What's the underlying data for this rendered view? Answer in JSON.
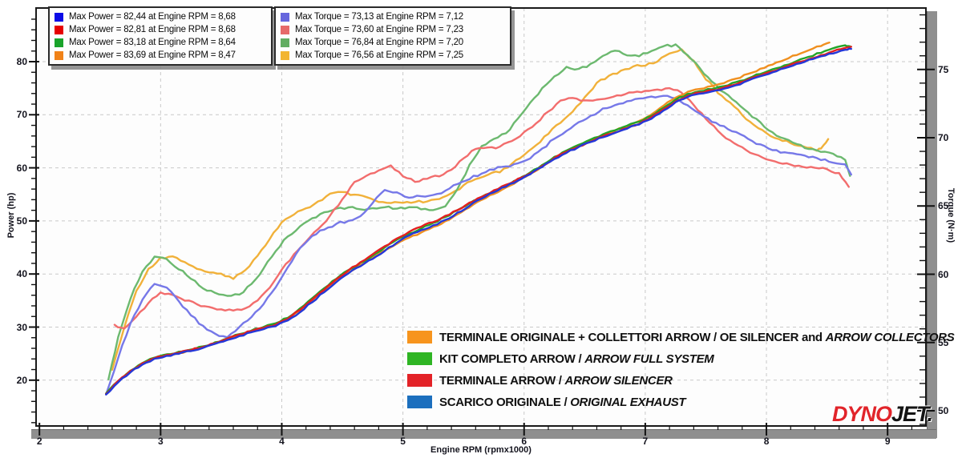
{
  "branding": {
    "dyno": "DYNO",
    "jet": "JET."
  },
  "legend_power": {
    "rows": [
      {
        "color": "#0a0ae6",
        "label": "Max Power = 82,44 at Engine RPM = 8,68"
      },
      {
        "color": "#e60000",
        "label": "Max Power = 82,81 at Engine RPM = 8,68"
      },
      {
        "color": "#19a32a",
        "label": "Max Power = 83,18 at Engine RPM = 8,64"
      },
      {
        "color": "#f08218",
        "label": "Max Power = 83,69 at Engine RPM = 8,47"
      }
    ]
  },
  "legend_torque": {
    "rows": [
      {
        "color": "#6666dd",
        "label": "Max Torque = 73,13 at Engine RPM = 7,12"
      },
      {
        "color": "#e66a6a",
        "label": "Max Torque = 73,60 at Engine RPM = 7,23"
      },
      {
        "color": "#62ad62",
        "label": "Max Torque = 76,84 at Engine RPM = 7,20"
      },
      {
        "color": "#f2b530",
        "label": "Max Torque = 76,56 at Engine RPM = 7,25"
      }
    ]
  },
  "main_legend": {
    "rows": [
      {
        "color": "#F7941D",
        "text": "TERMINALE ORIGINALE + COLLETTORI ARROW / OE SILENCER and ",
        "italic": "ARROW COLLECTORS"
      },
      {
        "color": "#2FB524",
        "text": "KIT COMPLETO ARROW / ",
        "italic": "ARROW FULL SYSTEM"
      },
      {
        "color": "#E32227",
        "text": "TERMINALE ARROW / ",
        "italic": "ARROW SILENCER"
      },
      {
        "color": "#1C6FBE",
        "text": "SCARICO ORIGINALE / ",
        "italic": "ORIGINAL EXHAUST"
      }
    ]
  },
  "chart_data": {
    "type": "line",
    "title": "",
    "xlabel": "Engine RPM (rpmx1000)",
    "ylabel_left": "Power (hp)",
    "ylabel_right": "Torque (N·m)",
    "x_ticks": [
      2,
      3,
      4,
      5,
      6,
      7,
      8,
      9
    ],
    "power_axis": {
      "min": 11,
      "max": 90,
      "ticks": [
        20,
        30,
        40,
        50,
        60,
        70,
        80
      ]
    },
    "torque_axis": {
      "min": 49,
      "max": 79,
      "ticks": [
        50,
        55,
        60,
        65,
        70,
        75
      ]
    },
    "grid": true,
    "series": [
      {
        "id": "torque-gold",
        "name": "Torque — OE silencer + Arrow collectors",
        "axis": "torque",
        "color": "#f1b13a",
        "x": [
          2.6,
          2.7,
          2.8,
          2.9,
          3.0,
          3.1,
          3.2,
          3.3,
          3.4,
          3.5,
          3.6,
          3.7,
          3.8,
          3.9,
          4.0,
          4.1,
          4.2,
          4.3,
          4.4,
          4.5,
          4.6,
          4.7,
          4.8,
          4.9,
          5.0,
          5.1,
          5.2,
          5.3,
          5.4,
          5.5,
          5.6,
          5.7,
          5.8,
          5.9,
          6.0,
          6.1,
          6.2,
          6.3,
          6.4,
          6.5,
          6.6,
          6.7,
          6.8,
          6.9,
          7.0,
          7.1,
          7.2,
          7.3,
          7.4,
          7.5,
          7.6,
          7.7,
          7.8,
          7.9,
          8.0,
          8.1,
          8.2,
          8.3,
          8.4,
          8.45,
          8.51
        ],
        "values": [
          53.0,
          56.1,
          58.8,
          60.4,
          61.2,
          61.3,
          60.9,
          60.4,
          60.1,
          60.0,
          59.7,
          60.3,
          61.4,
          62.6,
          63.8,
          64.4,
          64.8,
          65.3,
          65.9,
          66.0,
          65.8,
          65.6,
          65.3,
          65.2,
          65.2,
          65.3,
          65.3,
          65.5,
          65.9,
          66.5,
          67.0,
          67.3,
          67.5,
          68.1,
          68.7,
          69.5,
          70.3,
          71.1,
          71.9,
          73.0,
          74.0,
          74.5,
          74.9,
          75.2,
          75.3,
          75.6,
          76.2,
          76.5,
          75.6,
          74.3,
          73.3,
          72.6,
          71.7,
          70.9,
          70.3,
          69.9,
          69.6,
          69.4,
          69.1,
          69.2,
          69.9
        ]
      },
      {
        "id": "torque-lightgreen",
        "name": "Torque — Arrow full system",
        "axis": "torque",
        "color": "#6cb96f",
        "x": [
          2.57,
          2.65,
          2.75,
          2.85,
          2.95,
          3.05,
          3.15,
          3.25,
          3.35,
          3.45,
          3.55,
          3.65,
          3.75,
          3.85,
          3.95,
          4.05,
          4.15,
          4.25,
          4.35,
          4.45,
          4.55,
          4.65,
          4.75,
          4.85,
          4.95,
          5.05,
          5.15,
          5.25,
          5.35,
          5.45,
          5.55,
          5.65,
          5.75,
          5.85,
          5.95,
          6.05,
          6.15,
          6.25,
          6.35,
          6.45,
          6.55,
          6.65,
          6.75,
          6.85,
          6.95,
          7.05,
          7.15,
          7.25,
          7.35,
          7.45,
          7.55,
          7.65,
          7.75,
          7.85,
          7.95,
          8.05,
          8.15,
          8.25,
          8.35,
          8.45,
          8.55,
          8.65,
          8.69
        ],
        "values": [
          52.3,
          55.4,
          58.2,
          60.2,
          61.3,
          61.1,
          60.4,
          59.7,
          59.0,
          58.6,
          58.4,
          58.5,
          59.3,
          60.4,
          61.7,
          62.8,
          63.5,
          64.1,
          64.5,
          64.8,
          64.9,
          64.8,
          64.8,
          64.9,
          64.8,
          64.9,
          64.8,
          64.7,
          65.0,
          66.2,
          68.0,
          69.4,
          69.9,
          70.3,
          71.4,
          72.6,
          73.6,
          74.5,
          75.2,
          75.0,
          75.4,
          76.0,
          76.4,
          76.0,
          76.0,
          76.3,
          76.7,
          76.8,
          76.0,
          75.1,
          74.1,
          73.3,
          72.6,
          71.8,
          71.1,
          70.4,
          69.9,
          69.5,
          69.2,
          69.0,
          68.8,
          68.4,
          67.2
        ]
      },
      {
        "id": "torque-salmon",
        "name": "Torque — Arrow silencer",
        "axis": "torque",
        "color": "#f26d6d",
        "x": [
          2.62,
          2.7,
          2.8,
          2.9,
          3.0,
          3.1,
          3.2,
          3.3,
          3.4,
          3.5,
          3.6,
          3.7,
          3.8,
          3.9,
          4.0,
          4.1,
          4.2,
          4.3,
          4.4,
          4.5,
          4.6,
          4.7,
          4.8,
          4.9,
          5.0,
          5.1,
          5.2,
          5.3,
          5.4,
          5.5,
          5.6,
          5.7,
          5.8,
          5.9,
          6.0,
          6.1,
          6.2,
          6.3,
          6.4,
          6.5,
          6.6,
          6.7,
          6.8,
          6.9,
          7.0,
          7.1,
          7.2,
          7.3,
          7.4,
          7.5,
          7.6,
          7.7,
          7.8,
          7.9,
          8.0,
          8.1,
          8.2,
          8.3,
          8.4,
          8.5,
          8.6,
          8.68
        ],
        "values": [
          56.3,
          56.0,
          56.9,
          57.9,
          58.7,
          58.5,
          58.1,
          57.8,
          57.6,
          57.4,
          57.3,
          57.5,
          58.1,
          59.0,
          60.3,
          61.5,
          62.4,
          63.3,
          64.3,
          65.5,
          66.8,
          67.2,
          67.6,
          68.0,
          67.2,
          66.8,
          67.0,
          67.2,
          67.7,
          68.5,
          69.2,
          69.3,
          69.3,
          69.8,
          70.4,
          71.1,
          71.9,
          72.7,
          72.9,
          72.7,
          72.8,
          72.9,
          73.1,
          73.3,
          73.4,
          73.5,
          73.6,
          73.3,
          72.4,
          71.4,
          70.5,
          69.8,
          69.3,
          68.8,
          68.4,
          68.2,
          68.0,
          67.9,
          67.8,
          67.7,
          67.4,
          66.4
        ]
      },
      {
        "id": "torque-periwinkle",
        "name": "Torque — original exhaust",
        "axis": "torque",
        "color": "#7678e8",
        "x": [
          2.55,
          2.65,
          2.75,
          2.85,
          2.95,
          3.05,
          3.15,
          3.25,
          3.35,
          3.45,
          3.55,
          3.65,
          3.75,
          3.85,
          3.95,
          4.05,
          4.15,
          4.25,
          4.35,
          4.45,
          4.55,
          4.65,
          4.75,
          4.85,
          4.95,
          5.05,
          5.15,
          5.25,
          5.35,
          5.45,
          5.55,
          5.65,
          5.75,
          5.85,
          5.95,
          6.05,
          6.15,
          6.25,
          6.35,
          6.45,
          6.55,
          6.65,
          6.75,
          6.85,
          6.95,
          7.05,
          7.15,
          7.25,
          7.35,
          7.45,
          7.55,
          7.65,
          7.75,
          7.85,
          7.95,
          8.05,
          8.15,
          8.25,
          8.35,
          8.45,
          8.55,
          8.65,
          8.7
        ],
        "values": [
          51.2,
          53.9,
          56.4,
          58.1,
          59.3,
          59.0,
          58.0,
          57.0,
          56.2,
          55.6,
          55.4,
          56.1,
          56.9,
          57.8,
          59.0,
          60.5,
          61.9,
          62.8,
          63.3,
          63.7,
          63.9,
          64.3,
          65.2,
          66.2,
          66.0,
          65.6,
          65.7,
          65.8,
          66.1,
          66.6,
          67.0,
          67.4,
          67.7,
          67.9,
          68.1,
          68.5,
          69.2,
          69.9,
          70.5,
          71.1,
          71.6,
          72.1,
          72.4,
          72.7,
          72.9,
          73.0,
          73.1,
          72.9,
          72.4,
          71.8,
          71.2,
          70.8,
          70.4,
          69.9,
          69.5,
          69.1,
          68.9,
          68.8,
          68.6,
          68.4,
          68.2,
          68.0,
          67.3
        ]
      },
      {
        "id": "power-orange",
        "name": "Power — OE silencer + Arrow collectors",
        "axis": "power",
        "color": "#f09020",
        "x": [
          2.55,
          2.65,
          2.75,
          2.85,
          2.95,
          3.05,
          3.15,
          3.25,
          3.35,
          3.45,
          3.55,
          3.65,
          3.75,
          3.85,
          3.95,
          4.05,
          4.15,
          4.25,
          4.35,
          4.45,
          4.55,
          4.65,
          4.75,
          4.85,
          4.95,
          5.05,
          5.15,
          5.25,
          5.35,
          5.45,
          5.55,
          5.65,
          5.75,
          5.85,
          5.95,
          6.05,
          6.15,
          6.25,
          6.35,
          6.45,
          6.55,
          6.65,
          6.75,
          6.85,
          6.95,
          7.05,
          7.15,
          7.25,
          7.35,
          7.45,
          7.55,
          7.65,
          7.75,
          7.85,
          7.95,
          8.05,
          8.15,
          8.25,
          8.35,
          8.45,
          8.52
        ],
        "values": [
          17.4,
          19.7,
          21.6,
          23.1,
          24.1,
          24.7,
          25.1,
          25.6,
          26.2,
          26.9,
          27.7,
          28.5,
          29.2,
          29.8,
          30.5,
          31.5,
          33.1,
          35.0,
          36.9,
          38.7,
          40.3,
          41.7,
          43.1,
          44.5,
          45.7,
          46.8,
          47.8,
          48.8,
          49.9,
          51.2,
          52.6,
          53.9,
          55.1,
          56.3,
          57.5,
          58.8,
          60.3,
          61.8,
          63.0,
          64.1,
          65.1,
          66.1,
          67.0,
          67.9,
          68.8,
          70.1,
          71.7,
          73.2,
          74.3,
          74.9,
          75.4,
          76.0,
          76.8,
          77.7,
          78.6,
          79.5,
          80.4,
          81.3,
          82.2,
          83.0,
          83.6
        ]
      },
      {
        "id": "power-green",
        "name": "Power — Arrow full system",
        "axis": "power",
        "color": "#23a428",
        "x": [
          2.55,
          2.65,
          2.75,
          2.85,
          2.95,
          3.05,
          3.15,
          3.25,
          3.35,
          3.45,
          3.55,
          3.65,
          3.75,
          3.85,
          3.95,
          4.05,
          4.15,
          4.25,
          4.35,
          4.45,
          4.55,
          4.65,
          4.75,
          4.85,
          4.95,
          5.05,
          5.15,
          5.25,
          5.35,
          5.45,
          5.55,
          5.65,
          5.75,
          5.85,
          5.95,
          6.05,
          6.15,
          6.25,
          6.35,
          6.45,
          6.55,
          6.65,
          6.75,
          6.85,
          6.95,
          7.05,
          7.15,
          7.25,
          7.35,
          7.45,
          7.55,
          7.65,
          7.75,
          7.85,
          7.95,
          8.05,
          8.15,
          8.25,
          8.35,
          8.45,
          8.55,
          8.65,
          8.69
        ],
        "values": [
          17.5,
          19.9,
          21.8,
          23.3,
          24.3,
          24.9,
          25.3,
          25.8,
          26.4,
          27.1,
          27.9,
          28.7,
          29.4,
          30.0,
          30.7,
          31.8,
          33.5,
          35.4,
          37.3,
          39.1,
          40.7,
          42.1,
          43.5,
          45.0,
          46.4,
          47.6,
          48.6,
          49.6,
          50.7,
          52.0,
          53.3,
          54.5,
          55.6,
          56.7,
          57.8,
          59.1,
          60.5,
          62.0,
          63.2,
          64.3,
          65.3,
          66.3,
          67.1,
          67.9,
          68.7,
          69.8,
          71.3,
          72.8,
          73.9,
          74.5,
          74.9,
          75.4,
          76.1,
          76.9,
          77.7,
          78.5,
          79.3,
          80.1,
          80.9,
          81.7,
          82.5,
          83.1,
          82.9
        ]
      },
      {
        "id": "power-red",
        "name": "Power — Arrow silencer",
        "axis": "power",
        "color": "#e32020",
        "x": [
          2.55,
          2.65,
          2.75,
          2.85,
          2.95,
          3.05,
          3.15,
          3.25,
          3.35,
          3.45,
          3.55,
          3.65,
          3.75,
          3.85,
          3.95,
          4.05,
          4.15,
          4.25,
          4.35,
          4.45,
          4.55,
          4.65,
          4.75,
          4.85,
          4.95,
          5.05,
          5.15,
          5.25,
          5.35,
          5.45,
          5.55,
          5.65,
          5.75,
          5.85,
          5.95,
          6.05,
          6.15,
          6.25,
          6.35,
          6.45,
          6.55,
          6.65,
          6.75,
          6.85,
          6.95,
          7.05,
          7.15,
          7.25,
          7.35,
          7.45,
          7.55,
          7.65,
          7.75,
          7.85,
          7.95,
          8.05,
          8.15,
          8.25,
          8.35,
          8.45,
          8.55,
          8.65,
          8.7
        ],
        "values": [
          17.4,
          19.8,
          21.7,
          23.2,
          24.2,
          24.8,
          25.2,
          25.7,
          26.3,
          27.0,
          27.8,
          28.6,
          29.3,
          29.9,
          30.5,
          31.6,
          33.3,
          35.2,
          37.1,
          39.0,
          40.7,
          42.2,
          43.7,
          45.2,
          46.7,
          47.9,
          48.9,
          49.8,
          50.9,
          52.1,
          53.4,
          54.6,
          55.7,
          56.8,
          57.9,
          59.0,
          60.3,
          61.8,
          63.0,
          64.0,
          65.0,
          65.9,
          66.7,
          67.5,
          68.3,
          69.5,
          71.0,
          72.5,
          73.6,
          74.2,
          74.6,
          75.1,
          75.8,
          76.6,
          77.4,
          78.2,
          79.0,
          79.8,
          80.5,
          81.2,
          81.9,
          82.6,
          82.8
        ]
      },
      {
        "id": "power-blue",
        "name": "Power — original exhaust",
        "axis": "power",
        "color": "#2538d8",
        "x": [
          2.55,
          2.65,
          2.75,
          2.85,
          2.95,
          3.05,
          3.15,
          3.25,
          3.35,
          3.45,
          3.55,
          3.65,
          3.75,
          3.85,
          3.95,
          4.05,
          4.15,
          4.25,
          4.35,
          4.45,
          4.55,
          4.65,
          4.75,
          4.85,
          4.95,
          5.05,
          5.15,
          5.25,
          5.35,
          5.45,
          5.55,
          5.65,
          5.75,
          5.85,
          5.95,
          6.05,
          6.15,
          6.25,
          6.35,
          6.45,
          6.55,
          6.65,
          6.75,
          6.85,
          6.95,
          7.05,
          7.15,
          7.25,
          7.35,
          7.45,
          7.55,
          7.65,
          7.75,
          7.85,
          7.95,
          8.05,
          8.15,
          8.25,
          8.35,
          8.45,
          8.55,
          8.65,
          8.7
        ],
        "values": [
          17.3,
          19.6,
          21.5,
          23.0,
          24.0,
          24.6,
          25.0,
          25.5,
          26.1,
          26.8,
          27.5,
          28.3,
          29.0,
          29.6,
          30.2,
          31.2,
          32.8,
          34.7,
          36.6,
          38.5,
          40.1,
          41.5,
          42.9,
          44.4,
          45.9,
          47.2,
          48.2,
          49.1,
          50.2,
          51.5,
          52.9,
          54.2,
          55.4,
          56.5,
          57.6,
          58.8,
          60.2,
          61.7,
          62.9,
          63.9,
          64.9,
          65.8,
          66.6,
          67.4,
          68.2,
          69.3,
          70.8,
          72.3,
          73.4,
          74.0,
          74.4,
          74.9,
          75.6,
          76.4,
          77.2,
          78.0,
          78.8,
          79.6,
          80.3,
          81.0,
          81.6,
          82.2,
          82.4
        ]
      }
    ]
  }
}
